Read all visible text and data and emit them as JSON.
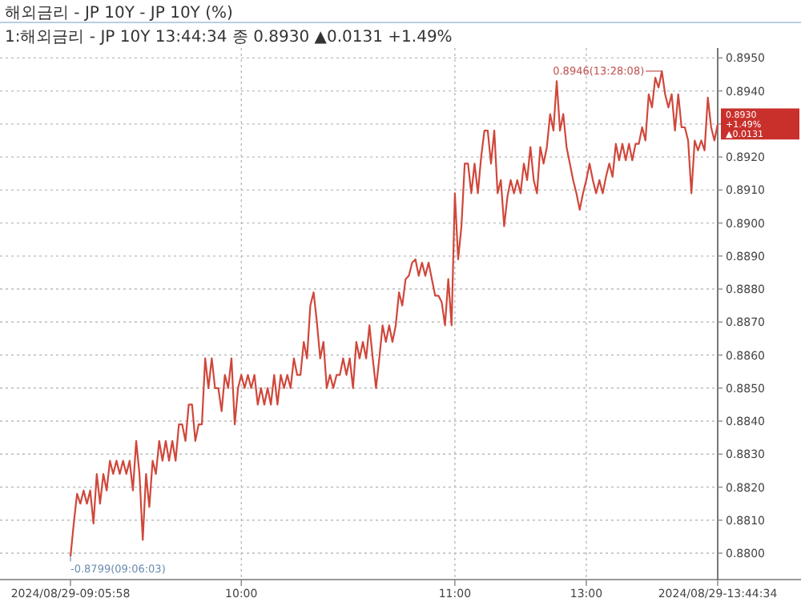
{
  "chart_data": {
    "type": "line",
    "title": "해외금리 - JP      10Y - JP 10Y (%)",
    "subtitle": "1:해외금리 - JP 10Y 13:44:34 종 0.8930 ▲0.0131 +1.49%",
    "categories": [
      "2024/08/29-09:05:58",
      null,
      null,
      null,
      null,
      null,
      null,
      null,
      null,
      null,
      null,
      null,
      null,
      null,
      null,
      null,
      null,
      null,
      null,
      null,
      null,
      null,
      null,
      null,
      null,
      null,
      null,
      null,
      null,
      null,
      null,
      null,
      null,
      null,
      null,
      null,
      null,
      null,
      null,
      null,
      null,
      null,
      null,
      null,
      null,
      null,
      null,
      null,
      null,
      null,
      null,
      null,
      "10:00",
      null,
      null,
      null,
      null,
      null,
      null,
      null,
      null,
      null,
      null,
      null,
      null,
      null,
      null,
      null,
      null,
      null,
      null,
      null,
      null,
      null,
      null,
      null,
      null,
      null,
      null,
      null,
      null,
      null,
      null,
      null,
      null,
      null,
      null,
      null,
      null,
      null,
      null,
      null,
      null,
      null,
      null,
      null,
      null,
      null,
      null,
      null,
      null,
      null,
      null,
      null,
      null,
      null,
      null,
      null,
      null,
      null,
      null,
      null,
      null,
      null,
      null,
      null,
      null,
      "11:00",
      null,
      null,
      null,
      null,
      null,
      null,
      null,
      null,
      null,
      null,
      null,
      null,
      null,
      null,
      null,
      null,
      null,
      null,
      null,
      null,
      null,
      null,
      null,
      null,
      null,
      null,
      null,
      null,
      null,
      null,
      null,
      null,
      null,
      null,
      null,
      null,
      null,
      null,
      null,
      "13:00",
      null,
      null,
      null,
      null,
      null,
      null,
      null,
      null,
      null,
      null,
      null,
      null,
      null,
      null,
      null,
      null,
      null,
      null,
      null,
      null,
      null,
      null,
      null,
      null,
      null,
      null,
      null,
      null,
      null,
      null,
      null,
      null,
      null,
      null,
      null,
      null,
      null,
      null,
      null,
      "2024/08/29-13:44:34"
    ],
    "color": "#d0473b",
    "values": [
      0.8799,
      0.8809,
      0.8818,
      0.8815,
      0.8819,
      0.8815,
      0.8819,
      0.8809,
      0.8824,
      0.8815,
      0.8824,
      0.8819,
      0.8828,
      0.8824,
      0.8828,
      0.8824,
      0.8828,
      0.8824,
      0.8828,
      0.8819,
      0.8834,
      0.8824,
      0.8804,
      0.8824,
      0.8814,
      0.8828,
      0.8824,
      0.8834,
      0.8828,
      0.8834,
      0.8828,
      0.8834,
      0.8828,
      0.8839,
      0.8839,
      0.8834,
      0.8845,
      0.8845,
      0.8834,
      0.8839,
      0.8839,
      0.8859,
      0.885,
      0.8859,
      0.885,
      0.885,
      0.8843,
      0.8854,
      0.885,
      0.8859,
      0.8839,
      0.885,
      0.8854,
      0.885,
      0.8854,
      0.885,
      0.8854,
      0.8845,
      0.885,
      0.8845,
      0.885,
      0.8845,
      0.8854,
      0.8845,
      0.8854,
      0.885,
      0.8854,
      0.885,
      0.8859,
      0.8854,
      0.8854,
      0.8864,
      0.8859,
      0.8875,
      0.8879,
      0.887,
      0.8859,
      0.8864,
      0.885,
      0.8854,
      0.885,
      0.8854,
      0.8854,
      0.8859,
      0.8854,
      0.8859,
      0.885,
      0.8864,
      0.8859,
      0.8864,
      0.8859,
      0.8869,
      0.8859,
      0.885,
      0.8859,
      0.8869,
      0.8864,
      0.8869,
      0.8864,
      0.8869,
      0.8879,
      0.8875,
      0.8883,
      0.8884,
      0.8888,
      0.8889,
      0.8884,
      0.8888,
      0.8884,
      0.8888,
      0.8883,
      0.8878,
      0.8878,
      0.8876,
      0.8869,
      0.8883,
      0.8869,
      0.8909,
      0.8889,
      0.8899,
      0.8918,
      0.8918,
      0.8909,
      0.8918,
      0.8909,
      0.892,
      0.8928,
      0.8928,
      0.8918,
      0.8928,
      0.8909,
      0.8913,
      0.8899,
      0.8908,
      0.8913,
      0.8909,
      0.8913,
      0.8909,
      0.8918,
      0.8913,
      0.8923,
      0.8913,
      0.8909,
      0.8923,
      0.8918,
      0.8923,
      0.8933,
      0.8928,
      0.8943,
      0.8928,
      0.8933,
      0.8923,
      0.8918,
      0.8913,
      0.8909,
      0.8904,
      0.8909,
      0.8913,
      0.8918,
      0.8913,
      0.8909,
      0.8913,
      0.8909,
      0.8914,
      0.8918,
      0.8914,
      0.8924,
      0.8919,
      0.8924,
      0.8919,
      0.8924,
      0.8919,
      0.8924,
      0.8924,
      0.8929,
      0.8925,
      0.8939,
      0.8935,
      0.8944,
      0.8941,
      0.8946,
      0.8939,
      0.8935,
      0.8939,
      0.8928,
      0.8939,
      0.8929,
      0.8929,
      0.8925,
      0.8909,
      0.8925,
      0.8922,
      0.8925,
      0.8922,
      0.8938,
      0.8929,
      0.8925,
      0.893
    ],
    "ylim": [
      0.8792,
      0.8953
    ],
    "yticks": [
      {
        "value": 0.88,
        "label": "0.8800"
      },
      {
        "value": 0.881,
        "label": "0.8810"
      },
      {
        "value": 0.882,
        "label": "0.8820"
      },
      {
        "value": 0.883,
        "label": "0.8830"
      },
      {
        "value": 0.884,
        "label": "0.8840"
      },
      {
        "value": 0.885,
        "label": "0.8850"
      },
      {
        "value": 0.886,
        "label": "0.8860"
      },
      {
        "value": 0.887,
        "label": "0.8870"
      },
      {
        "value": 0.888,
        "label": "0.8880"
      },
      {
        "value": 0.889,
        "label": "0.8890"
      },
      {
        "value": 0.89,
        "label": "0.8900"
      },
      {
        "value": 0.891,
        "label": "0.8910"
      },
      {
        "value": 0.892,
        "label": "0.8920"
      },
      {
        "value": 0.893,
        "label": null
      },
      {
        "value": 0.894,
        "label": "0.8940"
      },
      {
        "value": 0.895,
        "label": "0.8950"
      }
    ],
    "grid": true,
    "annotations": [
      "0.8946(13:28:08)",
      "-0.8799(09:06:03)",
      "0.8930",
      "+1.49%",
      "▲0.0131"
    ]
  }
}
